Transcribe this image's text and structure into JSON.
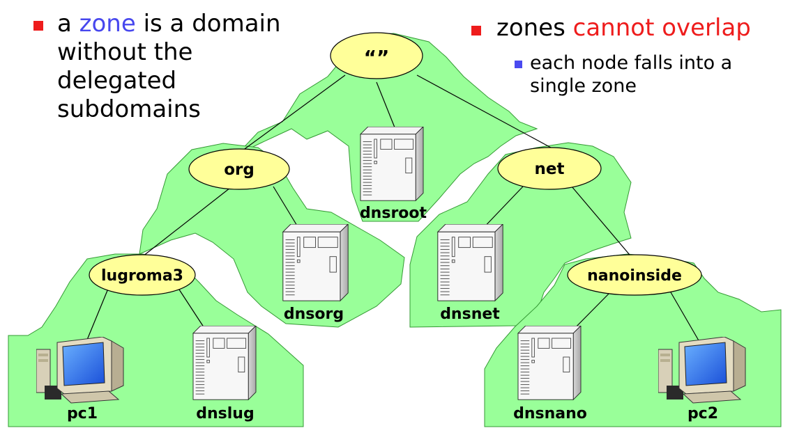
{
  "bullets": {
    "left": {
      "prefix": "a ",
      "highlight": "zone",
      "suffix": " is a domain without the delegated subdomains"
    },
    "right": {
      "prefix": "zones ",
      "highlight": "cannot overlap",
      "sub": "each node falls into a single zone"
    }
  },
  "nodes": {
    "root": "“”",
    "org": "org",
    "net": "net",
    "lugroma3": "lugroma3",
    "nanoinside": "nanoinside"
  },
  "servers": {
    "dnsroot": "dnsroot",
    "dnsorg": "dnsorg",
    "dnsnet": "dnsnet",
    "dnslug": "dnslug",
    "dnsnano": "dnsnano"
  },
  "pcs": {
    "pc1": "pc1",
    "pc2": "pc2"
  },
  "colors": {
    "zone_fill": "#99ff99",
    "zone_stroke": "#339933",
    "node_fill": "#ffff99",
    "bullet_red": "#ee1c1c",
    "bullet_blue": "#4a4af0"
  }
}
